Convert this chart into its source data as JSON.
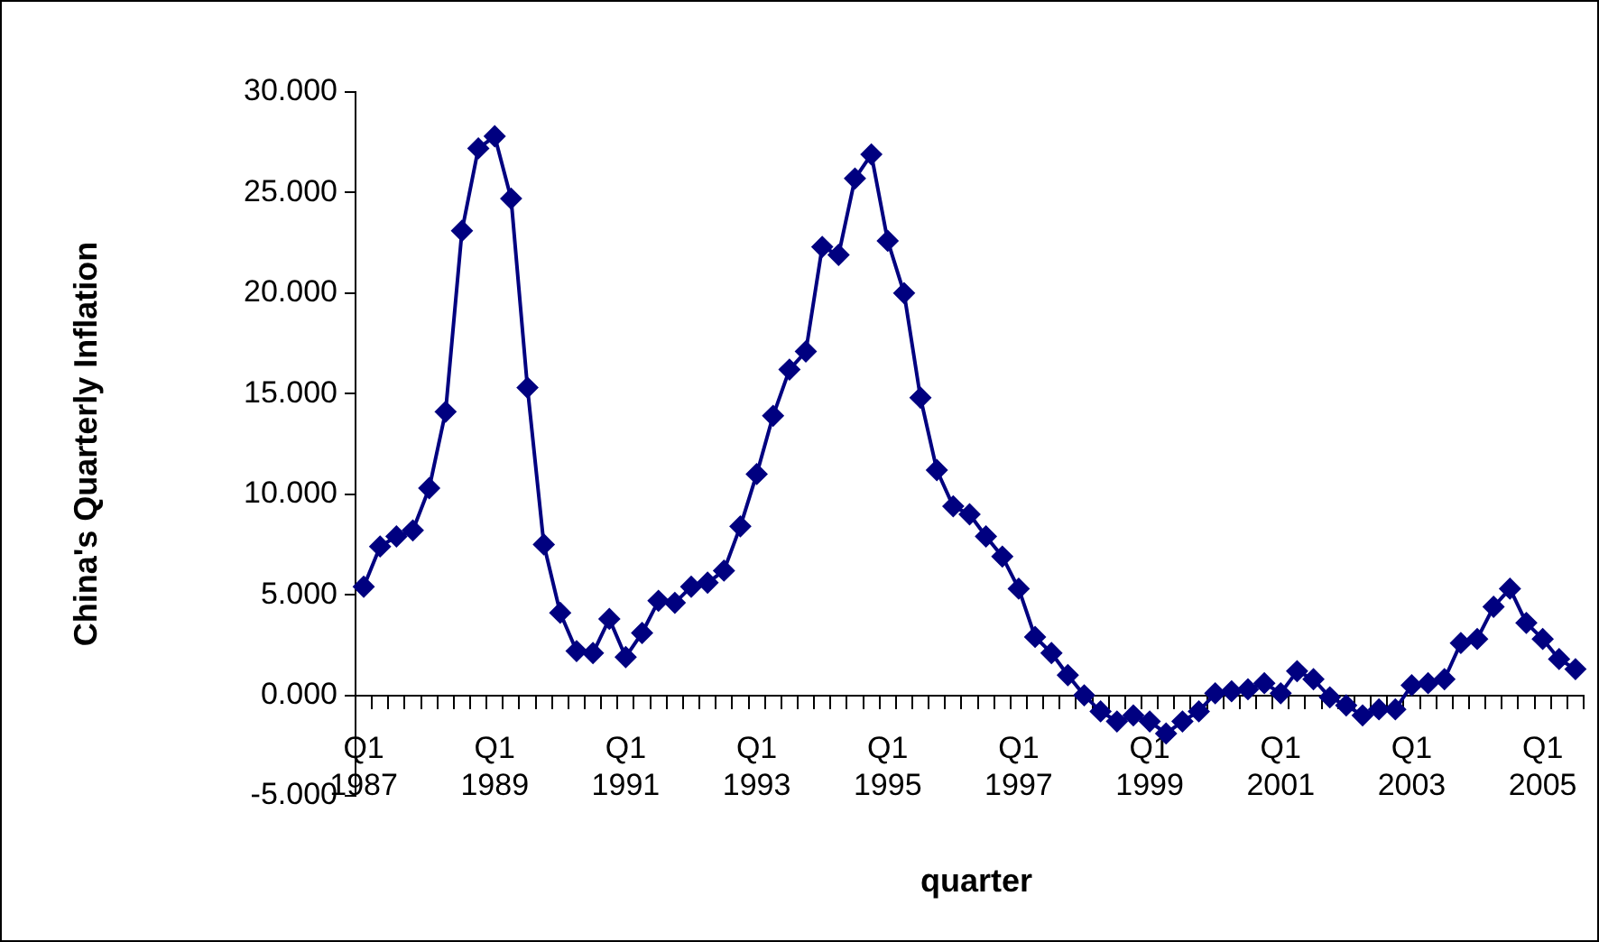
{
  "chart_data": {
    "type": "line",
    "xlabel": "quarter",
    "ylabel": "China's Quarterly Inflation",
    "categories": [
      "Q1\n1987",
      null,
      null,
      null,
      null,
      null,
      null,
      null,
      "Q1\n1989",
      null,
      null,
      null,
      null,
      null,
      null,
      null,
      "Q1\n1991",
      null,
      null,
      null,
      null,
      null,
      null,
      null,
      "Q1\n1993",
      null,
      null,
      null,
      null,
      null,
      null,
      null,
      "Q1\n1995",
      null,
      null,
      null,
      null,
      null,
      null,
      null,
      "Q1\n1997",
      null,
      null,
      null,
      null,
      null,
      null,
      null,
      "Q1\n1999",
      null,
      null,
      null,
      null,
      null,
      null,
      null,
      "Q1\n2001",
      null,
      null,
      null,
      null,
      null,
      null,
      null,
      "Q1\n2003",
      null,
      null,
      null,
      null,
      null,
      null,
      null,
      "Q1\n2005",
      null,
      null
    ],
    "series": [
      {
        "color": "#000080",
        "values": [
          5.4,
          7.4,
          7.9,
          8.2,
          10.3,
          14.1,
          23.1,
          27.2,
          27.8,
          24.7,
          15.3,
          7.5,
          4.1,
          2.2,
          2.1,
          3.8,
          1.9,
          3.1,
          4.7,
          4.6,
          5.4,
          5.6,
          6.2,
          8.4,
          11.0,
          13.9,
          16.2,
          17.1,
          22.3,
          21.9,
          25.7,
          26.9,
          22.6,
          20.0,
          14.8,
          11.2,
          9.4,
          9.0,
          7.9,
          6.9,
          5.3,
          2.9,
          2.1,
          1.0,
          0.0,
          -0.8,
          -1.3,
          -1.0,
          -1.3,
          -1.9,
          -1.3,
          -0.8,
          0.1,
          0.2,
          0.3,
          0.6,
          0.1,
          1.2,
          0.8,
          -0.1,
          -0.5,
          -1.0,
          -0.7,
          -0.7,
          0.5,
          0.6,
          0.8,
          2.6,
          2.8,
          4.4,
          5.3,
          3.6,
          2.8,
          1.8,
          1.3
        ]
      }
    ],
    "ylim": [
      -5,
      30
    ],
    "yticks": [
      {
        "value": -5,
        "label": "-5.000"
      },
      {
        "value": 0,
        "label": "0.000"
      },
      {
        "value": 5,
        "label": "5.000"
      },
      {
        "value": 10,
        "label": "10.000"
      },
      {
        "value": 15,
        "label": "15.000"
      },
      {
        "value": 20,
        "label": "20.000"
      },
      {
        "value": 25,
        "label": "25.000"
      },
      {
        "value": 30,
        "label": "30.000"
      }
    ],
    "grid": false,
    "legend": false,
    "marker": "diamond",
    "line_style": "solid"
  }
}
